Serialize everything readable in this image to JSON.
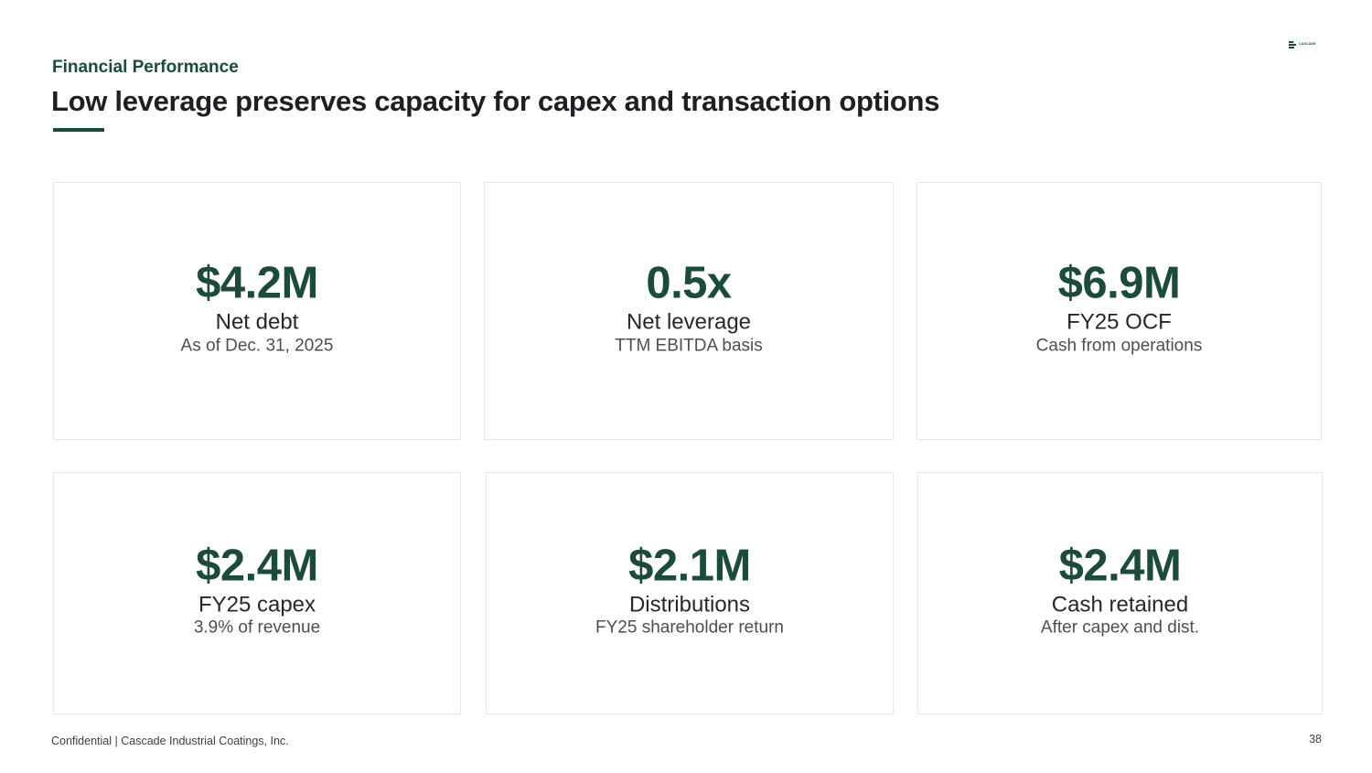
{
  "header": {
    "section_label": "Financial Performance",
    "title": "Low leverage preserves capacity for capex and transaction options",
    "logo_text": "CASCADE"
  },
  "metrics": [
    {
      "value": "$4.2M",
      "label": "Net debt",
      "sublabel": "As of Dec. 31, 2025"
    },
    {
      "value": "0.5x",
      "label": "Net leverage",
      "sublabel": "TTM EBITDA basis"
    },
    {
      "value": "$6.9M",
      "label": "FY25 OCF",
      "sublabel": "Cash from operations"
    },
    {
      "value": "$2.4M",
      "label": "FY25 capex",
      "sublabel": "3.9% of revenue"
    },
    {
      "value": "$2.1M",
      "label": "Distributions",
      "sublabel": "FY25 shareholder return"
    },
    {
      "value": "$2.4M",
      "label": "Cash retained",
      "sublabel": "After capex and dist."
    }
  ],
  "footer": {
    "text": "Confidential | Cascade Industrial Coatings, Inc.",
    "page_number": "38"
  },
  "colors": {
    "accent": "#1d4b39",
    "card_border": "#e6e8e6",
    "title_text": "#1c1f24"
  }
}
